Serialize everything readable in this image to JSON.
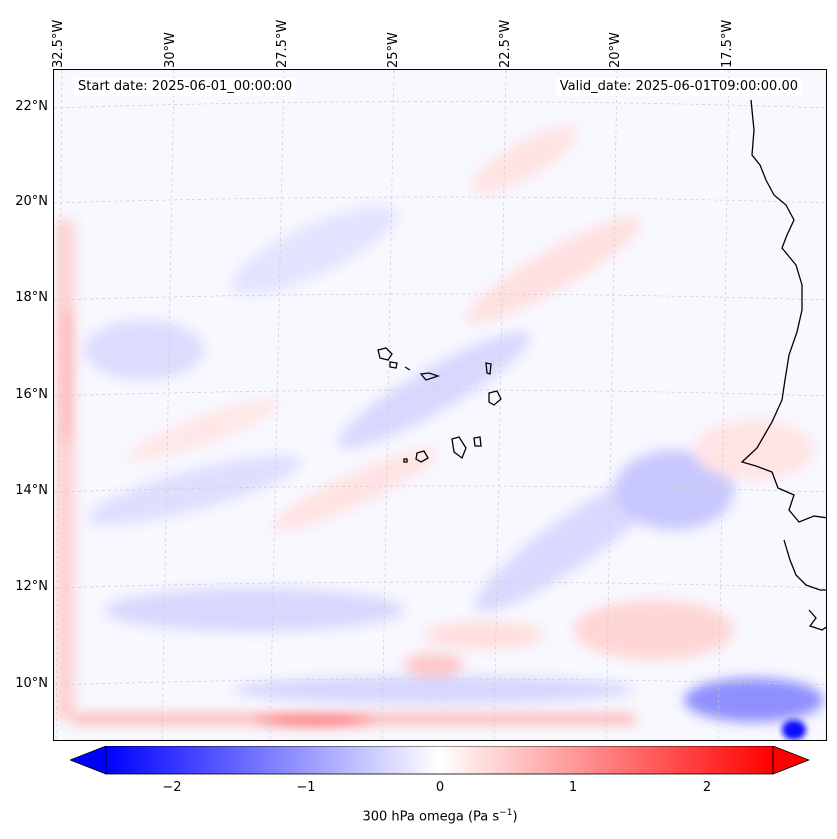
{
  "map": {
    "start_date": "Start date: 2025-06-01_00:00:00",
    "valid_date": "Valid_date: 2025-06-01T09:00:00.00",
    "lon_labels": [
      "32.5°W",
      "30°W",
      "27.5°W",
      "25°W",
      "22.5°W",
      "20°W",
      "17.5°W"
    ],
    "lat_labels": [
      "22°N",
      "20°N",
      "18°N",
      "16°N",
      "14°N",
      "12°N",
      "10°N"
    ],
    "field": "300 hPa omega",
    "colormap": "bwr",
    "colors": {
      "negative": "#0000ff",
      "zero": "#ffffff",
      "positive": "#ff0000",
      "coastline": "#000000"
    }
  },
  "colorbar": {
    "ticks": [
      "−2",
      "−1",
      "0",
      "1",
      "2"
    ],
    "tick_values": [
      -2,
      -1,
      0,
      1,
      2
    ],
    "range": [
      -2.5,
      2.5
    ],
    "extend": "both",
    "label_main": "300 hPa omega (Pa s",
    "label_exp": "−1",
    "label_close": ")"
  }
}
